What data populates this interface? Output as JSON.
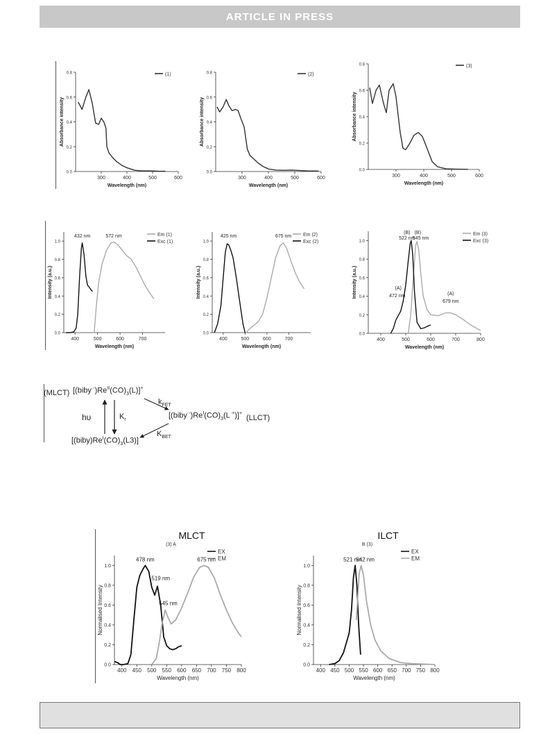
{
  "banner": {
    "text": "ARTICLE IN PRESS"
  },
  "scheme": {
    "mlct_label": "(MLCT)",
    "top_complex": {
      "a": "[(biby",
      "b": "·-",
      "c": ")Re",
      "d": "II",
      "e": "(CO)",
      "f": "3",
      "g": "(L)]",
      "h": "+"
    },
    "kfet": {
      "a": "k",
      "b": "FET"
    },
    "mid_complex": {
      "a": "[(biby",
      "b": "·-",
      "c": ")Re",
      "d": "I",
      "e": "(CO)",
      "f": "3",
      "g": "(L",
      "h": "·+",
      "i": ")]",
      "j": "+"
    },
    "llct_label": "(LLCT)",
    "hv": "hυ",
    "kr": {
      "a": "K",
      "b": "r"
    },
    "kbet": {
      "a": "K",
      "b": "BET"
    },
    "bottom_complex": {
      "a": "[(biby)Re",
      "b": "I",
      "c": "(CO)",
      "d": "3",
      "e": "(L3)]"
    }
  },
  "colors": {
    "dark": "#333333",
    "black": "#111111",
    "light": "#aaaaaa"
  },
  "chart_data": [
    {
      "type": "line",
      "xlabel": "Wavelength (nm)",
      "ylabel": "Absorbance intensity",
      "xlim": [
        200,
        600
      ],
      "ylim": [
        0,
        0.8
      ],
      "xticks": [
        "300",
        "400",
        "500",
        "600"
      ],
      "yticks": [
        "0.0",
        "0.2",
        "0.4",
        "0.6",
        "0.8"
      ],
      "legend": [
        {
          "text": "(1)"
        }
      ],
      "series": [
        {
          "name": "(1)",
          "color": "#333333",
          "x": [
            210,
            225,
            240,
            252,
            265,
            278,
            290,
            300,
            310,
            318,
            322,
            330,
            345,
            360,
            380,
            400,
            430,
            460,
            490,
            520,
            550
          ],
          "y": [
            0.56,
            0.5,
            0.6,
            0.66,
            0.55,
            0.39,
            0.38,
            0.43,
            0.4,
            0.35,
            0.2,
            0.15,
            0.11,
            0.08,
            0.05,
            0.03,
            0.01,
            0.005,
            0.005,
            0.003,
            0.002
          ]
        }
      ]
    },
    {
      "type": "line",
      "xlabel": "Wavelength (nm)",
      "ylabel": "Absorbance intensity",
      "xlim": [
        200,
        600
      ],
      "ylim": [
        0,
        0.8
      ],
      "xticks": [
        "300",
        "400",
        "500",
        "600"
      ],
      "yticks": [
        "0.0",
        "0.2",
        "0.4",
        "0.6",
        "0.8"
      ],
      "legend": [
        {
          "text": "(2)"
        }
      ],
      "series": [
        {
          "name": "(2)",
          "color": "#333333",
          "x": [
            205,
            215,
            228,
            240,
            250,
            262,
            275,
            285,
            295,
            308,
            320,
            330,
            345,
            360,
            380,
            400,
            430,
            460,
            490,
            520,
            550,
            590
          ],
          "y": [
            0.52,
            0.48,
            0.52,
            0.58,
            0.53,
            0.49,
            0.5,
            0.49,
            0.43,
            0.36,
            0.18,
            0.13,
            0.1,
            0.07,
            0.04,
            0.02,
            0.012,
            0.01,
            0.012,
            0.008,
            0.005,
            0.004
          ]
        }
      ]
    },
    {
      "type": "line",
      "xlabel": "Wavelength (nm)",
      "ylabel": "Absorbance intensity",
      "xlim": [
        200,
        600
      ],
      "ylim": [
        0,
        0.8
      ],
      "xticks": [
        "300",
        "400",
        "500",
        "600"
      ],
      "yticks": [
        "0.0",
        "0.2",
        "0.4",
        "0.6",
        "0.8"
      ],
      "legend": [
        {
          "text": "(3)"
        }
      ],
      "series": [
        {
          "name": "(3)",
          "color": "#333333",
          "x": [
            205,
            215,
            228,
            240,
            255,
            265,
            275,
            290,
            300,
            315,
            325,
            335,
            350,
            365,
            380,
            395,
            410,
            430,
            450,
            480,
            520,
            560
          ],
          "y": [
            0.62,
            0.5,
            0.6,
            0.64,
            0.5,
            0.43,
            0.6,
            0.65,
            0.55,
            0.28,
            0.16,
            0.15,
            0.2,
            0.26,
            0.28,
            0.25,
            0.17,
            0.06,
            0.02,
            0.005,
            0.002,
            0.001
          ]
        }
      ]
    },
    {
      "type": "line",
      "xlabel": "Wavelength (nm)",
      "ylabel": "Intensity (a.u.)",
      "xlim": [
        350,
        800
      ],
      "ylim": [
        0,
        1.1
      ],
      "xticks": [
        "400",
        "500",
        "600",
        "700"
      ],
      "yticks": [
        "0.0",
        "0.2",
        "0.4",
        "0.6",
        "0.8",
        "1.0"
      ],
      "legend": [
        {
          "text": "Em (1)"
        },
        {
          "text": "Exc (1)"
        }
      ],
      "annotations": [
        {
          "text": "432 nm",
          "x": 432,
          "y": 1.04
        },
        {
          "text": "572 nm",
          "x": 572,
          "y": 1.04
        }
      ],
      "series": [
        {
          "name": "Em (1)",
          "color": "#aaaaaa",
          "x": [
            485,
            495,
            505,
            520,
            540,
            560,
            572,
            590,
            610,
            630,
            650,
            670,
            690,
            710,
            730,
            750
          ],
          "y": [
            0.0,
            0.3,
            0.55,
            0.75,
            0.9,
            0.98,
            0.99,
            0.96,
            0.9,
            0.84,
            0.8,
            0.72,
            0.62,
            0.52,
            0.44,
            0.37
          ]
        },
        {
          "name": "Exc (1)",
          "color": "#111111",
          "x": [
            360,
            380,
            395,
            405,
            412,
            420,
            428,
            432,
            440,
            448,
            455,
            462,
            470,
            478
          ],
          "y": [
            0.0,
            0.0,
            0.01,
            0.05,
            0.2,
            0.6,
            0.92,
            0.98,
            0.85,
            0.62,
            0.52,
            0.5,
            0.47,
            0.45
          ]
        }
      ]
    },
    {
      "type": "line",
      "xlabel": "Wavelength (nm)",
      "ylabel": "Intensity (a.u.)",
      "xlim": [
        350,
        800
      ],
      "ylim": [
        0,
        1.1
      ],
      "xticks": [
        "400",
        "500",
        "600",
        "700"
      ],
      "yticks": [
        "0.0",
        "0.2",
        "0.4",
        "0.6",
        "0.8",
        "1.0"
      ],
      "legend": [
        {
          "text": "Em (2)"
        },
        {
          "text": "Exc (2)"
        }
      ],
      "annotations": [
        {
          "text": "425 nm",
          "x": 425,
          "y": 1.04
        },
        {
          "text": "675 nm",
          "x": 675,
          "y": 1.04
        }
      ],
      "series": [
        {
          "name": "Em (2)",
          "color": "#aaaaaa",
          "x": [
            505,
            520,
            540,
            560,
            580,
            600,
            620,
            640,
            660,
            675,
            690,
            710,
            730,
            750,
            770
          ],
          "y": [
            0.0,
            0.04,
            0.08,
            0.12,
            0.2,
            0.38,
            0.6,
            0.82,
            0.95,
            0.98,
            0.92,
            0.78,
            0.65,
            0.55,
            0.48
          ]
        },
        {
          "name": "Exc (2)",
          "color": "#111111",
          "x": [
            360,
            375,
            390,
            400,
            410,
            418,
            425,
            435,
            445,
            460,
            475,
            490,
            500
          ],
          "y": [
            0.0,
            0.1,
            0.3,
            0.6,
            0.88,
            0.97,
            0.96,
            0.9,
            0.82,
            0.6,
            0.35,
            0.1,
            0.0
          ]
        }
      ]
    },
    {
      "type": "line",
      "xlabel": "Wavelength (nm)",
      "ylabel": "Intensity (a.u.)",
      "xlim": [
        350,
        800
      ],
      "ylim": [
        0,
        1.1
      ],
      "xticks": [
        "400",
        "500",
        "600",
        "700",
        "800"
      ],
      "yticks": [
        "0.0",
        "0.2",
        "0.4",
        "0.6",
        "0.8",
        "1.0"
      ],
      "legend": [
        {
          "text": "Em (3)"
        },
        {
          "text": "Exc (3)"
        }
      ],
      "annotations": [
        {
          "text": "(B)",
          "x": 505,
          "y": 1.07
        },
        {
          "text": "522 nm",
          "x": 505,
          "y": 1.01
        },
        {
          "text": "(B)",
          "x": 548,
          "y": 1.07
        },
        {
          "text": "545 nm",
          "x": 560,
          "y": 1.01
        },
        {
          "text": "(A)",
          "x": 470,
          "y": 0.47
        },
        {
          "text": "472 nm",
          "x": 466,
          "y": 0.39
        },
        {
          "text": "(A)",
          "x": 680,
          "y": 0.41
        },
        {
          "text": "679 nm",
          "x": 680,
          "y": 0.33
        }
      ],
      "series": [
        {
          "name": "Em (3)",
          "color": "#aaaaaa",
          "x": [
            510,
            520,
            530,
            540,
            545,
            552,
            560,
            570,
            585,
            600,
            630,
            660,
            680,
            700,
            730,
            760,
            800
          ],
          "y": [
            0.0,
            0.2,
            0.6,
            0.95,
            0.99,
            0.9,
            0.65,
            0.4,
            0.26,
            0.2,
            0.19,
            0.22,
            0.22,
            0.2,
            0.15,
            0.09,
            0.03
          ]
        },
        {
          "name": "Exc (3)",
          "color": "#111111",
          "x": [
            440,
            450,
            460,
            472,
            480,
            490,
            500,
            510,
            518,
            522,
            528,
            535,
            545,
            560,
            575,
            590,
            600
          ],
          "y": [
            0.0,
            0.05,
            0.14,
            0.2,
            0.24,
            0.35,
            0.52,
            0.78,
            0.97,
            1.0,
            0.85,
            0.45,
            0.12,
            0.05,
            0.06,
            0.08,
            0.09
          ]
        }
      ]
    },
    {
      "type": "line",
      "title": "MLCT",
      "subtitle": "(3) A",
      "xlabel": "Wavelength (nm)",
      "ylabel": "Normalised Intensity",
      "xlim": [
        375,
        800
      ],
      "ylim": [
        0,
        1.1
      ],
      "xticks": [
        "400",
        "450",
        "500",
        "550",
        "600",
        "650",
        "700",
        "750",
        "800"
      ],
      "yticks": [
        "0.0",
        "0.2",
        "0.4",
        "0.6",
        "0.8",
        "1.0"
      ],
      "legend": [
        {
          "text": "EX"
        },
        {
          "text": "EM"
        }
      ],
      "annotations": [
        {
          "text": "478 nm",
          "x": 478,
          "y": 1.04
        },
        {
          "text": "519 nm",
          "x": 530,
          "y": 0.85
        },
        {
          "text": "545 nm",
          "x": 555,
          "y": 0.6
        },
        {
          "text": "675 nm",
          "x": 683,
          "y": 1.04
        }
      ],
      "series": [
        {
          "name": "EX",
          "color": "#111111",
          "x": [
            375,
            385,
            395,
            405,
            420,
            430,
            440,
            450,
            460,
            470,
            478,
            490,
            500,
            510,
            519,
            530,
            540,
            550,
            560,
            570,
            580,
            590,
            600
          ],
          "y": [
            0.03,
            0.02,
            0.0,
            0.0,
            0.01,
            0.1,
            0.45,
            0.78,
            0.9,
            0.96,
            1.0,
            0.94,
            0.78,
            0.7,
            0.79,
            0.6,
            0.28,
            0.19,
            0.16,
            0.15,
            0.16,
            0.18,
            0.19
          ]
        },
        {
          "name": "EM",
          "color": "#aaaaaa",
          "x": [
            500,
            515,
            525,
            535,
            545,
            555,
            565,
            580,
            600,
            620,
            640,
            660,
            675,
            690,
            710,
            730,
            750,
            770,
            790,
            800
          ],
          "y": [
            0.0,
            0.06,
            0.22,
            0.42,
            0.55,
            0.47,
            0.41,
            0.45,
            0.57,
            0.72,
            0.88,
            0.98,
            1.0,
            0.98,
            0.87,
            0.7,
            0.55,
            0.42,
            0.32,
            0.28
          ]
        }
      ]
    },
    {
      "type": "line",
      "title": "ILCT",
      "subtitle": "B (3)",
      "xlabel": "Wavelength (nm)",
      "ylabel": "Normalised Intensity",
      "xlim": [
        375,
        800
      ],
      "ylim": [
        0,
        1.1
      ],
      "xticks": [
        "400",
        "450",
        "500",
        "550",
        "600",
        "650",
        "700",
        "750",
        "800"
      ],
      "yticks": [
        "0.0",
        "0.2",
        "0.4",
        "0.6",
        "0.8",
        "1.0"
      ],
      "legend": [
        {
          "text": "EX"
        },
        {
          "text": "EM"
        }
      ],
      "annotations": [
        {
          "text": "521 nm",
          "x": 512,
          "y": 1.04
        },
        {
          "text": "542 nm",
          "x": 556,
          "y": 1.04
        }
      ],
      "series": [
        {
          "name": "EX",
          "color": "#111111",
          "x": [
            430,
            450,
            465,
            480,
            490,
            500,
            508,
            515,
            521,
            527,
            533,
            540
          ],
          "y": [
            0.0,
            0.01,
            0.04,
            0.12,
            0.22,
            0.32,
            0.55,
            0.88,
            1.0,
            0.8,
            0.4,
            0.1
          ]
        },
        {
          "name": "EM",
          "color": "#aaaaaa",
          "x": [
            525,
            530,
            535,
            542,
            550,
            560,
            575,
            590,
            610,
            640,
            680,
            720,
            760,
            800
          ],
          "y": [
            0.45,
            0.68,
            0.92,
            1.0,
            0.9,
            0.65,
            0.4,
            0.25,
            0.14,
            0.06,
            0.02,
            0.01,
            0.005,
            0.0
          ]
        }
      ]
    }
  ]
}
